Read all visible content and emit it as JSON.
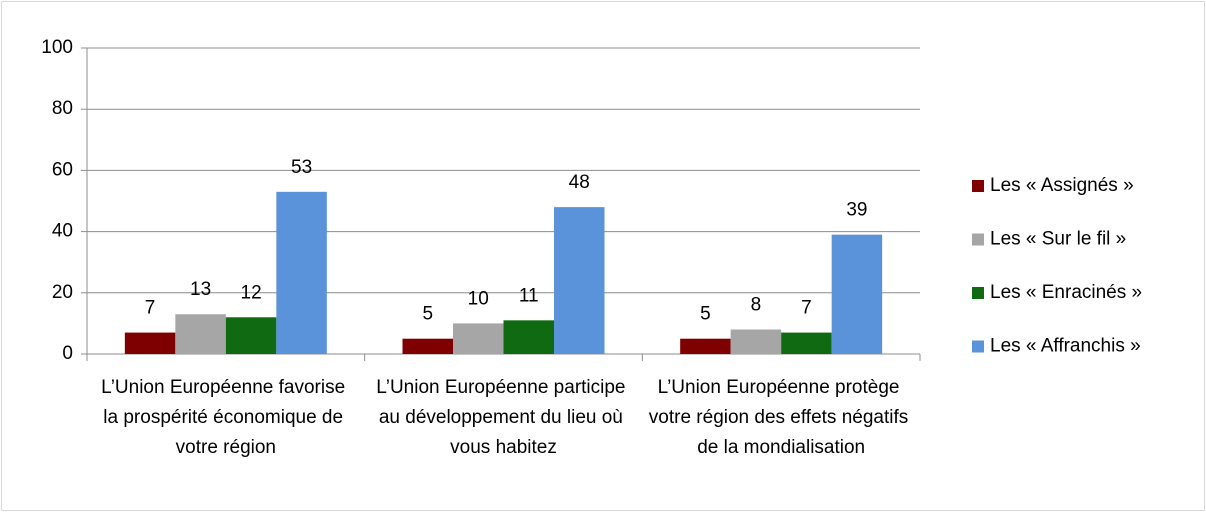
{
  "chart_data": {
    "type": "bar",
    "categories": [
      "L’Union Européenne favorise la prospérité économique de votre région",
      "L’Union Européenne participe au développement du lieu où vous habitez",
      "L’Union Européenne protège votre région des effets négatifs de la mondialisation"
    ],
    "series": [
      {
        "name": "Les « Assignés »",
        "color": "#7f0000",
        "values": [
          7,
          5,
          5
        ]
      },
      {
        "name": "Les « Sur le fil »",
        "color": "#a6a6a6",
        "values": [
          13,
          10,
          8
        ]
      },
      {
        "name": "Les « Enracinés »",
        "color": "#0f6a12",
        "values": [
          12,
          11,
          7
        ]
      },
      {
        "name": "Les « Affranchis »",
        "color": "#5b93da",
        "values": [
          53,
          48,
          39
        ]
      }
    ],
    "ylim": [
      0,
      100
    ],
    "yticks": [
      0,
      20,
      40,
      60,
      80,
      100
    ],
    "grid": true,
    "legend": "right"
  }
}
